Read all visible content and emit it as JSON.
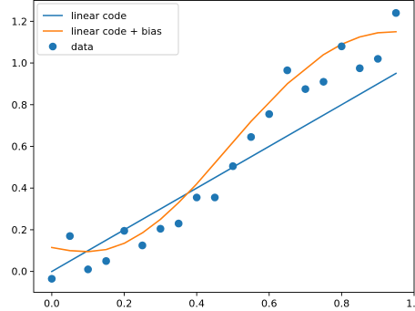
{
  "chart_data": {
    "type": "line",
    "title": "",
    "xlabel": "",
    "ylabel": "",
    "xlim": [
      -0.05,
      1.0
    ],
    "ylim": [
      -0.1,
      1.3
    ],
    "xticks": [
      "0.0",
      "0.2",
      "0.4",
      "0.6",
      "0.8",
      "1.0"
    ],
    "yticks": [
      "0.0",
      "0.2",
      "0.4",
      "0.6",
      "0.8",
      "1.0",
      "1.2"
    ],
    "grid": false,
    "legend_position": "top-left",
    "series": [
      {
        "name": "linear code",
        "type": "line",
        "color": "#1f77b4",
        "x": [
          0.0,
          0.95
        ],
        "y": [
          0.0,
          0.95
        ]
      },
      {
        "name": "linear code + bias",
        "type": "line",
        "color": "#ff7f0e",
        "x": [
          0.0,
          0.05,
          0.1,
          0.15,
          0.2,
          0.25,
          0.3,
          0.35,
          0.4,
          0.45,
          0.5,
          0.55,
          0.6,
          0.65,
          0.7,
          0.75,
          0.8,
          0.85,
          0.9,
          0.95
        ],
        "y": [
          0.115,
          0.1,
          0.095,
          0.105,
          0.135,
          0.185,
          0.25,
          0.33,
          0.42,
          0.52,
          0.62,
          0.72,
          0.81,
          0.9,
          0.97,
          1.04,
          1.09,
          1.125,
          1.145,
          1.15
        ]
      },
      {
        "name": "data",
        "type": "scatter",
        "color": "#1f77b4",
        "x": [
          0.0,
          0.05,
          0.1,
          0.15,
          0.2,
          0.25,
          0.3,
          0.35,
          0.4,
          0.45,
          0.5,
          0.55,
          0.6,
          0.65,
          0.7,
          0.75,
          0.8,
          0.85,
          0.9,
          0.95
        ],
        "y": [
          -0.035,
          0.17,
          0.01,
          0.05,
          0.195,
          0.125,
          0.205,
          0.23,
          0.355,
          0.355,
          0.505,
          0.645,
          0.755,
          0.965,
          0.875,
          0.91,
          1.08,
          0.975,
          1.02,
          1.24
        ]
      }
    ]
  }
}
